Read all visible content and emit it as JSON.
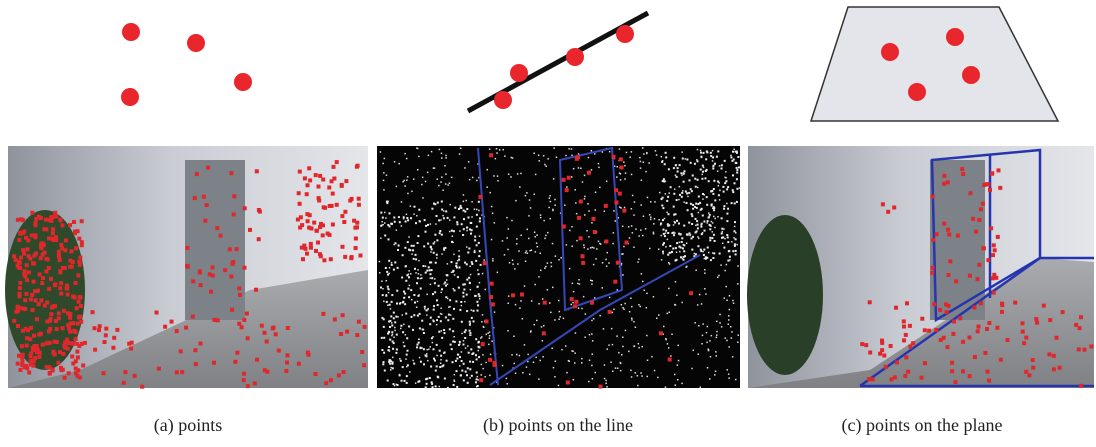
{
  "panels": [
    {
      "caption": "(a) points"
    },
    {
      "caption": "(b) points on the line"
    },
    {
      "caption": "(c) points on the plane"
    }
  ]
}
